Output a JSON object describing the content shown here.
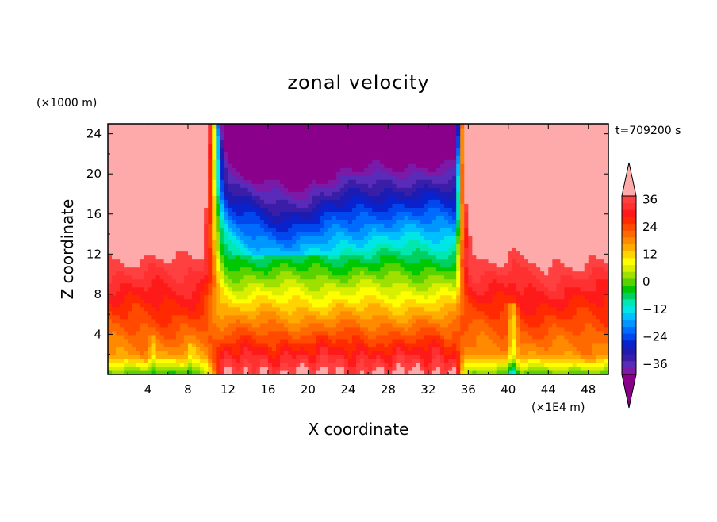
{
  "chart_data": {
    "type": "heatmap",
    "title": "zonal velocity",
    "xlabel": "X coordinate",
    "ylabel": "Z coordinate",
    "x_unit": "(×1E4 m)",
    "y_unit": "(×1000 m)",
    "time_label": "t=709200 s",
    "xlim": [
      0,
      50
    ],
    "ylim": [
      0,
      25
    ],
    "x_ticks": [
      4,
      8,
      12,
      16,
      20,
      24,
      28,
      32,
      36,
      40,
      44,
      48
    ],
    "y_ticks": [
      4,
      8,
      12,
      16,
      20,
      24
    ],
    "colorbar": {
      "levels": [
        -42,
        -39,
        -36,
        -33,
        -30,
        -27,
        -24,
        -21,
        -18,
        -15,
        -12,
        -9,
        -6,
        -3,
        0,
        3,
        6,
        9,
        12,
        15,
        18,
        21,
        24,
        27,
        30,
        33,
        36,
        39,
        42
      ],
      "tick_labels": [
        "36",
        "24",
        "12",
        "0",
        "−12",
        "−24",
        "−36"
      ],
      "tick_values": [
        36,
        24,
        12,
        0,
        -12,
        -24,
        -36
      ],
      "colors": [
        "#8b008b",
        "#7a1aa6",
        "#5a2ab8",
        "#3b1ea8",
        "#1c1cb2",
        "#0a22cc",
        "#0048ee",
        "#006cff",
        "#0096ff",
        "#00bfff",
        "#00e5e5",
        "#00e8b0",
        "#00d060",
        "#00c800",
        "#5ad200",
        "#a0e000",
        "#d8f000",
        "#ffff00",
        "#ffd400",
        "#ffab00",
        "#ff8a00",
        "#ff6a00",
        "#ff4a00",
        "#ff2a00",
        "#ff1a1a",
        "#ff3030",
        "#ff4040",
        "#ffaaaa"
      ]
    }
  }
}
